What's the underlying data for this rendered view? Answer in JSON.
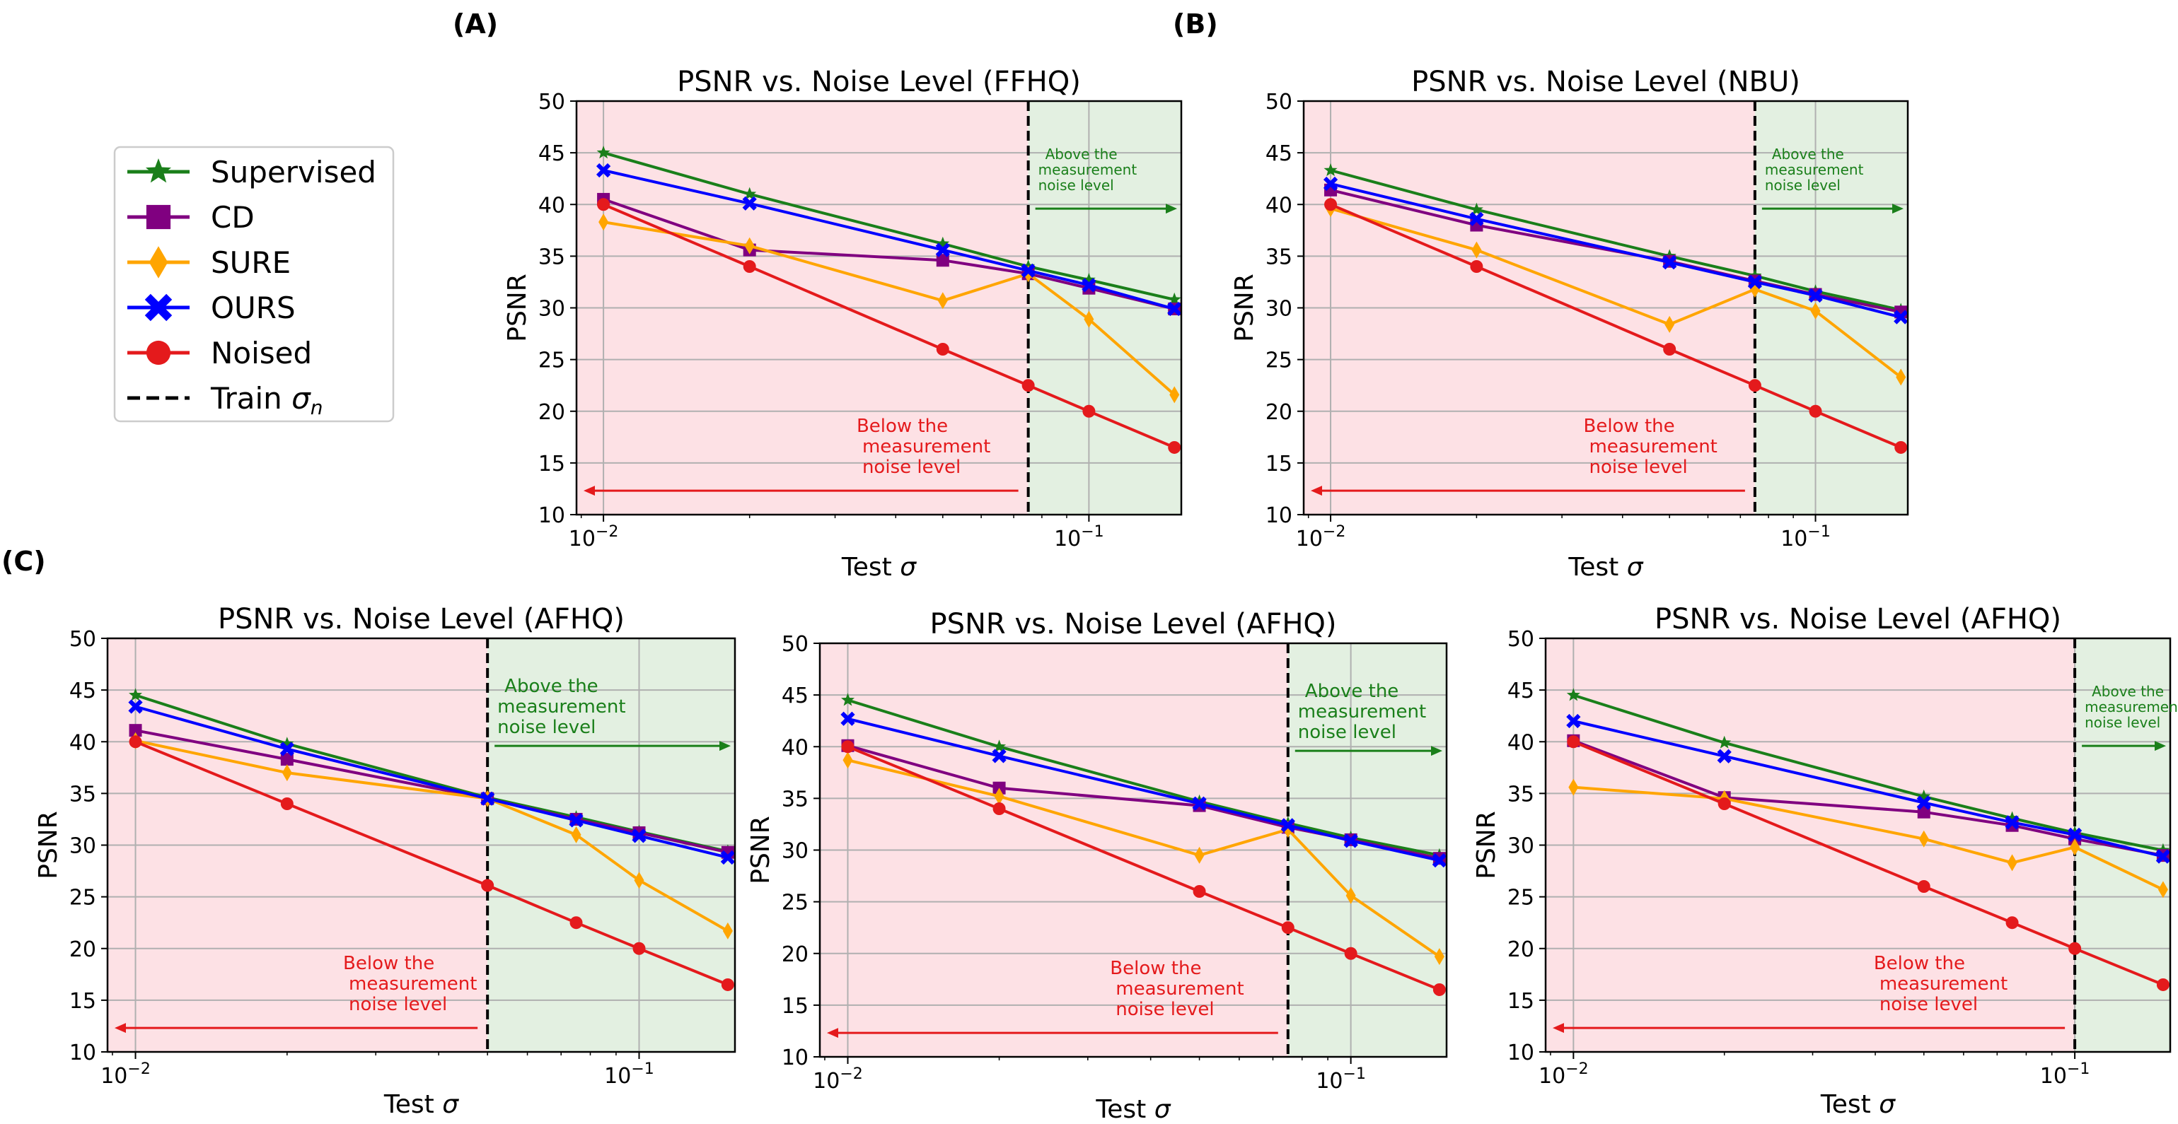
{
  "panels": {
    "A": "(A)",
    "B": "(B)",
    "C": "(C)"
  },
  "legend": {
    "entries": [
      {
        "name": "Supervised",
        "color": "#1a7f1a",
        "marker": "star"
      },
      {
        "name": "CD",
        "color": "#800080",
        "marker": "square"
      },
      {
        "name": "SURE",
        "color": "#ffa500",
        "marker": "diamond"
      },
      {
        "name": "OURS",
        "color": "#0000ff",
        "marker": "x"
      },
      {
        "name": "Noised",
        "color": "#e41a1c",
        "marker": "circle"
      }
    ],
    "train_label": "Train",
    "train_symbol": "σ",
    "train_sub": "n"
  },
  "chart_data": [
    {
      "type": "line",
      "title": "PSNR vs. Noise Level (FFHQ)",
      "xlabel": "Test",
      "xlabel_symbol": "σ",
      "ylabel": "PSNR",
      "xscale": "log",
      "xlim": [
        0.0088,
        0.155
      ],
      "ylim": [
        10,
        50
      ],
      "yticks": [
        "10",
        "15",
        "20",
        "25",
        "30",
        "35",
        "40",
        "45",
        "50"
      ],
      "xtick_major": [
        {
          "base": "10",
          "exp": "−2"
        },
        {
          "base": "10",
          "exp": "−1"
        }
      ],
      "x": [
        0.01,
        0.02,
        0.05,
        0.075,
        0.1,
        0.15
      ],
      "train_sigma": 0.075,
      "annot_above": [
        "Above the",
        "measurement",
        "noise level"
      ],
      "annot_below": [
        "Below the",
        "measurement",
        "noise level"
      ],
      "series": [
        {
          "name": "Supervised",
          "values": [
            45.0,
            41.0,
            36.2,
            34.0,
            32.7,
            30.8
          ]
        },
        {
          "name": "CD",
          "values": [
            40.5,
            35.6,
            34.6,
            33.3,
            31.9,
            29.9
          ]
        },
        {
          "name": "SURE",
          "values": [
            38.3,
            36.0,
            30.7,
            33.3,
            28.9,
            21.6
          ]
        },
        {
          "name": "OURS",
          "values": [
            43.3,
            40.1,
            35.6,
            33.6,
            32.2,
            29.9
          ]
        },
        {
          "name": "Noised",
          "values": [
            40.0,
            34.0,
            26.0,
            22.5,
            20.0,
            16.5
          ]
        }
      ]
    },
    {
      "type": "line",
      "title": "PSNR vs. Noise Level (NBU)",
      "xlabel": "Test",
      "xlabel_symbol": "σ",
      "ylabel": "PSNR",
      "xscale": "log",
      "xlim": [
        0.0088,
        0.155
      ],
      "ylim": [
        10,
        50
      ],
      "yticks": [
        "10",
        "15",
        "20",
        "25",
        "30",
        "35",
        "40",
        "45",
        "50"
      ],
      "xtick_major": [
        {
          "base": "10",
          "exp": "−2"
        },
        {
          "base": "10",
          "exp": "−1"
        }
      ],
      "x": [
        0.01,
        0.02,
        0.05,
        0.075,
        0.1,
        0.15
      ],
      "train_sigma": 0.075,
      "annot_above": [
        "Above the",
        "measurement",
        "noise level"
      ],
      "annot_below": [
        "Below the",
        "measurement",
        "noise level"
      ],
      "series": [
        {
          "name": "Supervised",
          "values": [
            43.3,
            39.5,
            35.0,
            33.1,
            31.6,
            29.8
          ]
        },
        {
          "name": "CD",
          "values": [
            41.4,
            38.0,
            34.5,
            32.6,
            31.3,
            29.6
          ]
        },
        {
          "name": "SURE",
          "values": [
            39.6,
            35.6,
            28.4,
            31.8,
            29.7,
            23.3
          ]
        },
        {
          "name": "OURS",
          "values": [
            42.0,
            38.6,
            34.4,
            32.5,
            31.2,
            29.1
          ]
        },
        {
          "name": "Noised",
          "values": [
            40.0,
            34.0,
            26.0,
            22.5,
            20.0,
            16.5
          ]
        }
      ]
    },
    {
      "type": "line",
      "title": "PSNR vs. Noise Level (AFHQ)",
      "xlabel": "Test",
      "xlabel_symbol": "σ",
      "ylabel": "PSNR",
      "xscale": "log",
      "xlim": [
        0.0088,
        0.155
      ],
      "ylim": [
        10,
        50
      ],
      "yticks": [
        "10",
        "15",
        "20",
        "25",
        "30",
        "35",
        "40",
        "45",
        "50"
      ],
      "xtick_major": [
        {
          "base": "10",
          "exp": "−2"
        },
        {
          "base": "10",
          "exp": "−1"
        }
      ],
      "x": [
        0.01,
        0.02,
        0.05,
        0.075,
        0.1,
        0.15
      ],
      "train_sigma": 0.05,
      "annot_above": [
        "Above the",
        "measurement",
        "noise level"
      ],
      "annot_below": [
        "Below the",
        "measurement",
        "noise level"
      ],
      "series": [
        {
          "name": "Supervised",
          "values": [
            44.5,
            39.8,
            34.6,
            32.7,
            31.3,
            29.4
          ]
        },
        {
          "name": "CD",
          "values": [
            41.1,
            38.3,
            34.5,
            32.5,
            31.2,
            29.3
          ]
        },
        {
          "name": "SURE",
          "values": [
            40.1,
            37.0,
            34.5,
            31.0,
            26.6,
            21.7
          ]
        },
        {
          "name": "OURS",
          "values": [
            43.4,
            39.3,
            34.5,
            32.4,
            30.9,
            28.8
          ]
        },
        {
          "name": "Noised",
          "values": [
            40.0,
            34.0,
            26.1,
            22.5,
            20.0,
            16.5
          ]
        }
      ]
    },
    {
      "type": "line",
      "title": "PSNR vs. Noise Level (AFHQ)",
      "xlabel": "Test",
      "xlabel_symbol": "σ",
      "ylabel": "PSNR",
      "xscale": "log",
      "xlim": [
        0.0088,
        0.155
      ],
      "ylim": [
        10,
        50
      ],
      "yticks": [
        "10",
        "15",
        "20",
        "25",
        "30",
        "35",
        "40",
        "45",
        "50"
      ],
      "xtick_major": [
        {
          "base": "10",
          "exp": "−2"
        },
        {
          "base": "10",
          "exp": "−1"
        }
      ],
      "x": [
        0.01,
        0.02,
        0.05,
        0.075,
        0.1,
        0.15
      ],
      "train_sigma": 0.075,
      "annot_above": [
        "Above the",
        "measurement",
        "noise level"
      ],
      "annot_below": [
        "Below the",
        "measurement",
        "noise level"
      ],
      "series": [
        {
          "name": "Supervised",
          "values": [
            44.5,
            40.0,
            34.7,
            32.6,
            31.2,
            29.5
          ]
        },
        {
          "name": "CD",
          "values": [
            40.1,
            36.0,
            34.3,
            32.2,
            31.0,
            29.2
          ]
        },
        {
          "name": "SURE",
          "values": [
            38.7,
            35.2,
            29.5,
            32.0,
            25.6,
            19.7
          ]
        },
        {
          "name": "OURS",
          "values": [
            42.7,
            39.1,
            34.5,
            32.4,
            30.9,
            29.0
          ]
        },
        {
          "name": "Noised",
          "values": [
            40.0,
            34.0,
            26.0,
            22.5,
            20.0,
            16.5
          ]
        }
      ]
    },
    {
      "type": "line",
      "title": "PSNR vs. Noise Level (AFHQ)",
      "xlabel": "Test",
      "xlabel_symbol": "σ",
      "ylabel": "PSNR",
      "xscale": "log",
      "xlim": [
        0.0088,
        0.155
      ],
      "ylim": [
        10,
        50
      ],
      "yticks": [
        "10",
        "15",
        "20",
        "25",
        "30",
        "35",
        "40",
        "45",
        "50"
      ],
      "xtick_major": [
        {
          "base": "10",
          "exp": "−2"
        },
        {
          "base": "10",
          "exp": "−1"
        }
      ],
      "x": [
        0.01,
        0.02,
        0.05,
        0.075,
        0.1,
        0.15
      ],
      "train_sigma": 0.1,
      "annot_above": [
        "Above the",
        "measurement",
        "noise level"
      ],
      "annot_below": [
        "Below the",
        "measurement",
        "noise level"
      ],
      "series": [
        {
          "name": "Supervised",
          "values": [
            44.5,
            39.9,
            34.7,
            32.6,
            31.2,
            29.5
          ]
        },
        {
          "name": "CD",
          "values": [
            40.1,
            34.6,
            33.2,
            31.9,
            30.6,
            29.0
          ]
        },
        {
          "name": "SURE",
          "values": [
            35.6,
            34.5,
            30.6,
            28.3,
            29.8,
            25.7
          ]
        },
        {
          "name": "OURS",
          "values": [
            42.0,
            38.6,
            34.1,
            32.2,
            31.0,
            28.9
          ]
        },
        {
          "name": "Noised",
          "values": [
            40.0,
            34.0,
            26.0,
            22.5,
            20.0,
            16.5
          ]
        }
      ]
    }
  ]
}
